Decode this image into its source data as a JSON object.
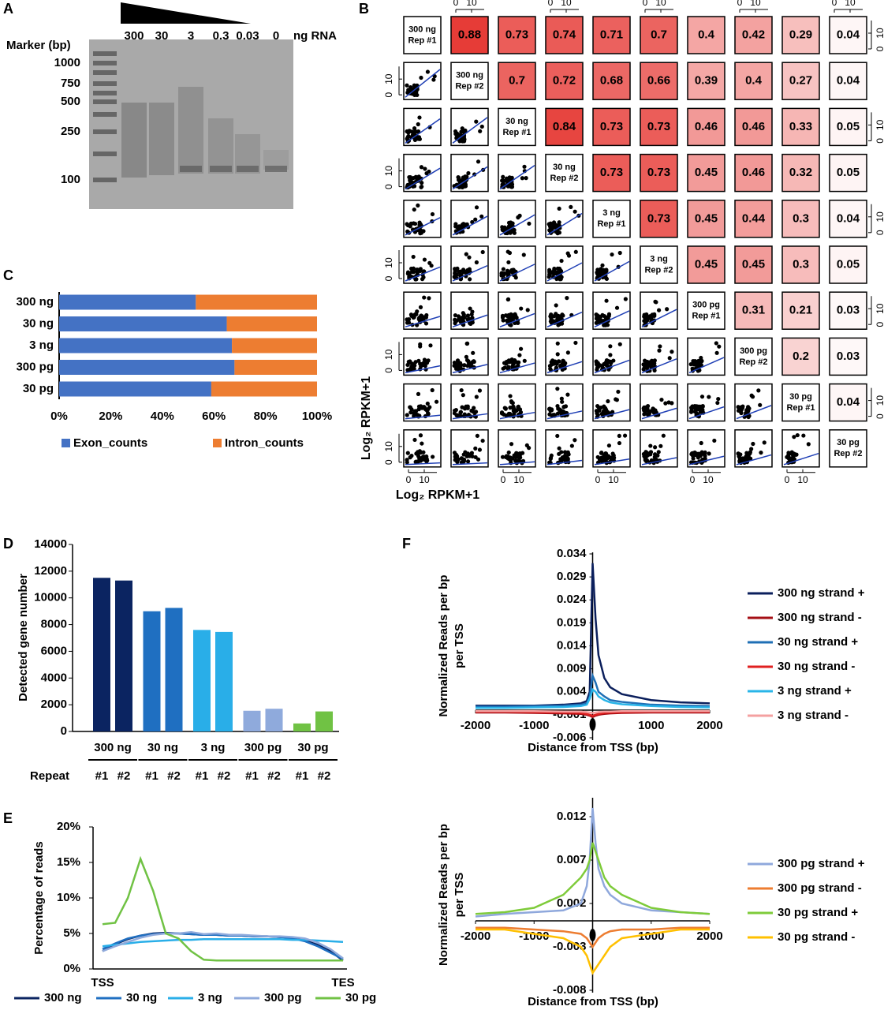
{
  "gel": {
    "panel": "A",
    "lanes": [
      "300",
      "30",
      "3",
      "0.3",
      "0.03",
      "0"
    ],
    "lane_unit": "ng RNA",
    "marker_title": "Marker (bp)",
    "marker_sizes": [
      1000,
      750,
      500,
      250,
      100
    ]
  },
  "chart_data": [
    {
      "type": "heatmap",
      "panel": "B",
      "labels": [
        [
          "300 ng",
          "Rep #1"
        ],
        [
          "300 ng",
          "Rep #2"
        ],
        [
          "30 ng",
          "Rep #1"
        ],
        [
          "30 ng",
          "Rep #2"
        ],
        [
          "3 ng",
          "Rep #1"
        ],
        [
          "3 ng",
          "Rep #2"
        ],
        [
          "300 pg",
          "Rep #1"
        ],
        [
          "300 pg",
          "Rep #2"
        ],
        [
          "30 pg",
          "Rep #1"
        ],
        [
          "30 pg",
          "Rep #2"
        ]
      ],
      "values": [
        [
          0.88,
          0.73,
          0.74,
          0.71,
          0.7,
          0.4,
          0.42,
          0.29,
          0.04
        ],
        [
          0.7,
          0.72,
          0.68,
          0.66,
          0.39,
          0.4,
          0.27,
          0.04
        ],
        [
          0.84,
          0.73,
          0.73,
          0.46,
          0.46,
          0.33,
          0.05
        ],
        [
          0.73,
          0.73,
          0.45,
          0.46,
          0.32,
          0.05
        ],
        [
          0.73,
          0.45,
          0.44,
          0.3,
          0.04
        ],
        [
          0.45,
          0.45,
          0.3,
          0.05
        ],
        [
          0.31,
          0.21,
          0.03
        ],
        [
          0.2,
          0.03
        ],
        [
          0.04
        ]
      ],
      "color_scale": [
        "#ffffff",
        "#e3211c"
      ],
      "ticks": [
        0,
        10
      ],
      "x_label": "Log₂ RPKM+1",
      "y_label": "Log₂ RPKM+1"
    },
    {
      "type": "bar",
      "stacked": true,
      "orientation": "horizontal",
      "panel": "C",
      "categories": [
        "300 ng",
        "30 ng",
        "3 ng",
        "300 pg",
        "30 pg"
      ],
      "series": [
        {
          "name": "Exon_counts",
          "color": "#4472c4",
          "values": [
            53,
            65,
            67,
            68,
            59
          ]
        },
        {
          "name": "Intron_counts",
          "color": "#ed7d31",
          "values": [
            47,
            35,
            33,
            32,
            41
          ]
        }
      ],
      "xlim": [
        0,
        100
      ],
      "xticks": [
        {
          "value": 0,
          "label": "0%"
        },
        {
          "value": 20,
          "label": "20%"
        },
        {
          "value": 40,
          "label": "40%"
        },
        {
          "value": 60,
          "label": "60%"
        },
        {
          "value": 80,
          "label": "80%"
        },
        {
          "value": 100,
          "label": "100%"
        }
      ],
      "legend": "bottom"
    },
    {
      "type": "bar",
      "panel": "D",
      "y_label": "Detected gene number",
      "group_title": "Repeat",
      "groups": [
        "300 ng",
        "30 ng",
        "3 ng",
        "300 pg",
        "30 pg"
      ],
      "categories": [
        "#1",
        "#2",
        "#1",
        "#2",
        "#1",
        "#2",
        "#1",
        "#2",
        "#1",
        "#2"
      ],
      "values": [
        11500,
        11300,
        9000,
        9250,
        7600,
        7450,
        1550,
        1700,
        600,
        1500
      ],
      "colors": [
        "#0b2461",
        "#0b2461",
        "#1f6fc1",
        "#1f6fc1",
        "#29aee8",
        "#29aee8",
        "#8faadc",
        "#8faadc",
        "#70c244",
        "#70c244"
      ],
      "ylim": [
        0,
        14000
      ],
      "yticks": [
        0,
        2000,
        4000,
        6000,
        8000,
        10000,
        12000,
        14000
      ]
    },
    {
      "type": "line",
      "panel": "E",
      "y_label": "Percentage of reads",
      "categories": [
        "TSS",
        null,
        null,
        null,
        null,
        null,
        null,
        null,
        null,
        null,
        null,
        null,
        null,
        null,
        null,
        null,
        null,
        null,
        null,
        "TES"
      ],
      "series": [
        {
          "name": "300 ng",
          "color": "#0b2461",
          "values": [
            2.5,
            3.5,
            4.2,
            4.7,
            5.0,
            5.1,
            5.0,
            4.9,
            4.8,
            4.8,
            4.7,
            4.7,
            4.6,
            4.6,
            4.5,
            4.4,
            4.0,
            3.4,
            2.5,
            1.2
          ]
        },
        {
          "name": "30 ng",
          "color": "#1f6fc1",
          "values": [
            2.8,
            3.6,
            4.3,
            4.7,
            4.9,
            5.0,
            5.0,
            4.9,
            4.8,
            4.8,
            4.7,
            4.7,
            4.6,
            4.6,
            4.5,
            4.3,
            3.9,
            3.2,
            2.3,
            1.4
          ]
        },
        {
          "name": "3 ng",
          "color": "#29aee8",
          "values": [
            3.2,
            3.4,
            3.6,
            3.8,
            3.9,
            4.0,
            4.1,
            4.1,
            4.2,
            4.2,
            4.2,
            4.2,
            4.2,
            4.2,
            4.2,
            4.1,
            4.1,
            4.0,
            3.9,
            3.8
          ]
        },
        {
          "name": "300 pg",
          "color": "#8faadc",
          "values": [
            2.5,
            3.2,
            3.8,
            4.4,
            4.8,
            5.0,
            5.0,
            5.2,
            4.9,
            5.0,
            4.8,
            4.8,
            4.7,
            4.6,
            4.6,
            4.5,
            4.3,
            3.7,
            2.8,
            1.5
          ]
        },
        {
          "name": "30 pg",
          "color": "#70c244",
          "values": [
            6.3,
            6.5,
            10,
            15.5,
            11,
            5,
            4.3,
            2.5,
            1.3,
            1.2,
            1.2,
            1.2,
            1.2,
            1.2,
            1.2,
            1.2,
            1.2,
            1.2,
            1.2,
            1.2
          ]
        }
      ],
      "ylim": [
        0,
        20
      ],
      "yticks": [
        {
          "value": 0,
          "label": "0%"
        },
        {
          "value": 5,
          "label": "5%"
        },
        {
          "value": 10,
          "label": "10%"
        },
        {
          "value": 15,
          "label": "15%"
        },
        {
          "value": 20,
          "label": "20%"
        }
      ],
      "legend": "bottom"
    },
    {
      "type": "line",
      "panel": "F",
      "y_label": [
        "Normalized Reads per bp",
        "per TSS"
      ],
      "x_label": "Distance from TSS (bp)",
      "x": [
        -2000,
        -1500,
        -1000,
        -500,
        -200,
        -100,
        -50,
        0,
        50,
        100,
        200,
        300,
        500,
        1000,
        1500,
        2000
      ],
      "series": [
        {
          "name": "300 ng strand +",
          "color": "#0b1f5c",
          "values": [
            0.001,
            0.001,
            0.001,
            0.0012,
            0.0015,
            0.002,
            0.004,
            0.032,
            0.02,
            0.012,
            0.007,
            0.005,
            0.0035,
            0.0022,
            0.0017,
            0.0015
          ]
        },
        {
          "name": "300 ng strand -",
          "color": "#a50f15",
          "values": [
            -0.0005,
            -0.0005,
            -0.0006,
            -0.0007,
            -0.0008,
            -0.001,
            -0.0012,
            -0.0015,
            -0.0012,
            -0.001,
            -0.0008,
            -0.0007,
            -0.0006,
            -0.0005,
            -0.0005,
            -0.0005
          ]
        },
        {
          "name": "30 ng strand +",
          "color": "#1f6fb5",
          "values": [
            0.0008,
            0.0008,
            0.0009,
            0.001,
            0.0012,
            0.0015,
            0.003,
            0.0075,
            0.006,
            0.004,
            0.003,
            0.0022,
            0.0018,
            0.0012,
            0.001,
            0.0009
          ]
        },
        {
          "name": "30 ng strand -",
          "color": "#e02020",
          "values": [
            -0.0003,
            -0.0003,
            -0.0004,
            -0.0005,
            -0.0006,
            -0.0008,
            -0.001,
            -0.0012,
            -0.001,
            -0.0008,
            -0.0006,
            -0.0005,
            -0.0004,
            -0.0003,
            -0.0003,
            -0.0003
          ]
        },
        {
          "name": "3 ng strand +",
          "color": "#29b5e8",
          "values": [
            0.0005,
            0.0005,
            0.0006,
            0.0007,
            0.0009,
            0.0012,
            0.0025,
            0.0045,
            0.004,
            0.003,
            0.0022,
            0.0017,
            0.0013,
            0.0009,
            0.0007,
            0.0006
          ]
        },
        {
          "name": "3 ng strand -",
          "color": "#f4a0a0",
          "values": [
            -0.0002,
            -0.0002,
            -0.0002,
            -0.0003,
            -0.0003,
            -0.0004,
            -0.0005,
            -0.0006,
            -0.0005,
            -0.0004,
            -0.0003,
            -0.0003,
            -0.0002,
            -0.0002,
            -0.0002,
            -0.0002
          ]
        }
      ],
      "xlim": [
        -2000,
        2000
      ],
      "xticks": [
        -2000,
        -1000,
        1000,
        2000
      ],
      "ylim": [
        -0.006,
        0.034
      ],
      "yticks": [
        -0.006,
        -0.001,
        0.004,
        0.009,
        0.014,
        0.019,
        0.024,
        0.029,
        0.034
      ],
      "legend": "right"
    },
    {
      "type": "line",
      "y_label": [
        "Normalized Reads per bp",
        "per TSS"
      ],
      "x_label": "Distance from TSS (bp)",
      "x": [
        -2000,
        -1500,
        -1000,
        -500,
        -200,
        -100,
        -50,
        0,
        50,
        100,
        200,
        300,
        500,
        1000,
        1500,
        2000
      ],
      "series": [
        {
          "name": "300 pg strand +",
          "color": "#8fa8dc",
          "values": [
            0.0005,
            0.0008,
            0.001,
            0.0012,
            0.002,
            0.004,
            0.007,
            0.013,
            0.009,
            0.006,
            0.004,
            0.003,
            0.002,
            0.0012,
            0.001,
            0.0008
          ]
        },
        {
          "name": "300 pg strand -",
          "color": "#ed7d31",
          "values": [
            -0.0008,
            -0.0008,
            -0.001,
            -0.0012,
            -0.0015,
            -0.002,
            -0.0025,
            -0.003,
            -0.0025,
            -0.002,
            -0.0015,
            -0.0012,
            -0.001,
            -0.001,
            -0.0008,
            -0.0008
          ]
        },
        {
          "name": "30 pg strand +",
          "color": "#7ecb3a",
          "values": [
            0.0008,
            0.001,
            0.0015,
            0.003,
            0.005,
            0.006,
            0.007,
            0.009,
            0.008,
            0.007,
            0.005,
            0.004,
            0.003,
            0.0015,
            0.001,
            0.0008
          ]
        },
        {
          "name": "30 pg strand -",
          "color": "#ffc000",
          "values": [
            -0.001,
            -0.001,
            -0.0015,
            -0.002,
            -0.003,
            -0.004,
            -0.005,
            -0.006,
            -0.0055,
            -0.005,
            -0.004,
            -0.003,
            -0.002,
            -0.0015,
            -0.001,
            -0.001
          ]
        }
      ],
      "xlim": [
        -2000,
        2000
      ],
      "xticks": [
        -2000,
        -1000,
        1000,
        2000
      ],
      "ylim": [
        -0.008,
        0.014
      ],
      "yticks": [
        -0.008,
        -0.003,
        0.002,
        0.007,
        0.012
      ],
      "legend": "right"
    }
  ]
}
